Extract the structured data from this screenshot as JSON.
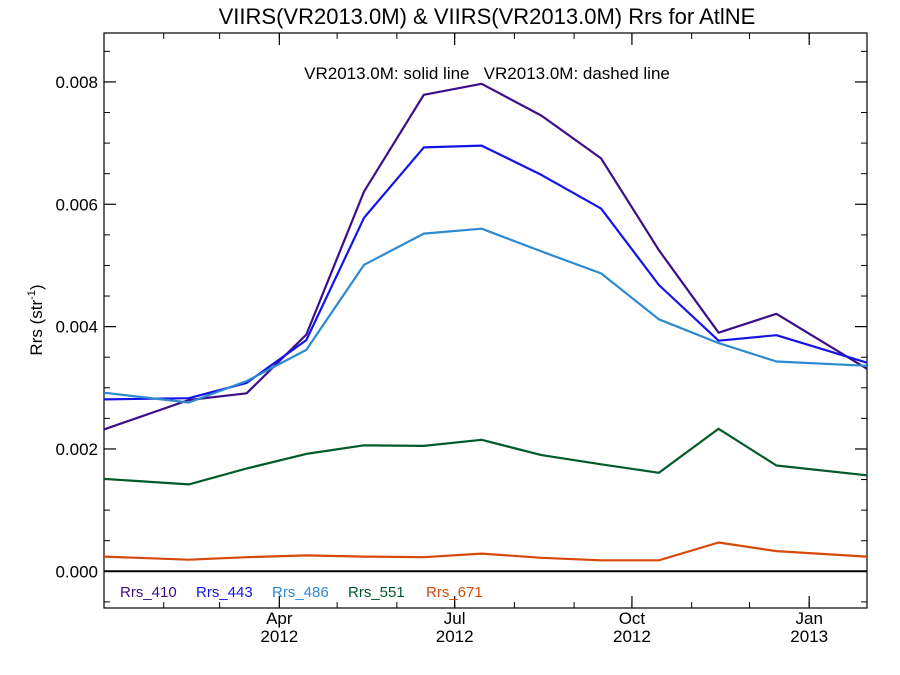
{
  "chart_data": {
    "type": "line",
    "title": "VIIRS(VR2013.0M) & VIIRS(VR2013.0M)  Rrs for AtlNE",
    "annotation": "VR2013.0M: solid line   VR2013.0M: dashed line",
    "ylabel_main": "Rrs (str",
    "ylabel_sup": "-1",
    "ylabel_close": ")",
    "xlabel": "",
    "x_range": [
      "2012-01-01",
      "2013-01-31"
    ],
    "ylim": [
      -0.0006,
      0.0088
    ],
    "y_ticks": [
      "0.000",
      "0.002",
      "0.004",
      "0.006",
      "0.008"
    ],
    "y_tick_values": [
      0,
      0.002,
      0.004,
      0.006,
      0.008
    ],
    "x_ticks": [
      {
        "date": "2012-04-01",
        "month": "Apr",
        "year": "2012"
      },
      {
        "date": "2012-07-01",
        "month": "Jul",
        "year": "2012"
      },
      {
        "date": "2012-10-01",
        "month": "Oct",
        "year": "2012"
      },
      {
        "date": "2013-01-01",
        "month": "Jan",
        "year": "2013"
      }
    ],
    "x": [
      "2012-01-01",
      "2012-02-14",
      "2012-03-15",
      "2012-04-15",
      "2012-05-15",
      "2012-06-15",
      "2012-07-15",
      "2012-08-15",
      "2012-09-15",
      "2012-10-15",
      "2012-11-15",
      "2012-12-15",
      "2013-01-31"
    ],
    "series": [
      {
        "name": "Rrs_410",
        "color": "#3b0f8a",
        "values": [
          0.00232,
          0.0028,
          0.00291,
          0.00387,
          0.00621,
          0.00779,
          0.00797,
          0.00745,
          0.00675,
          0.00525,
          0.0039,
          0.00421,
          0.00331
        ]
      },
      {
        "name": "Rrs_443",
        "color": "#1414e8",
        "values": [
          0.00281,
          0.00283,
          0.00308,
          0.00378,
          0.00578,
          0.00693,
          0.00696,
          0.00648,
          0.00593,
          0.00468,
          0.00377,
          0.00386,
          0.00341
        ]
      },
      {
        "name": "Rrs_486",
        "color": "#2d8ad0",
        "values": [
          0.00292,
          0.00276,
          0.00311,
          0.00362,
          0.00501,
          0.00552,
          0.0056,
          0.00523,
          0.00487,
          0.00412,
          0.00373,
          0.00343,
          0.00336
        ]
      },
      {
        "name": "Rrs_551",
        "color": "#005a2a",
        "values": [
          0.00151,
          0.00142,
          0.00168,
          0.00192,
          0.00206,
          0.00205,
          0.00215,
          0.0019,
          0.00175,
          0.00161,
          0.00233,
          0.00173,
          0.00157
        ]
      },
      {
        "name": "Rrs_671",
        "color": "#d8480a",
        "values": [
          0.00024,
          0.00019,
          0.00023,
          0.00026,
          0.00024,
          0.00023,
          0.00029,
          0.00022,
          0.00018,
          0.00018,
          0.00047,
          0.00033,
          0.00024
        ]
      }
    ],
    "zero_line": true,
    "grid": false,
    "legend_placement": "bottom-left"
  }
}
